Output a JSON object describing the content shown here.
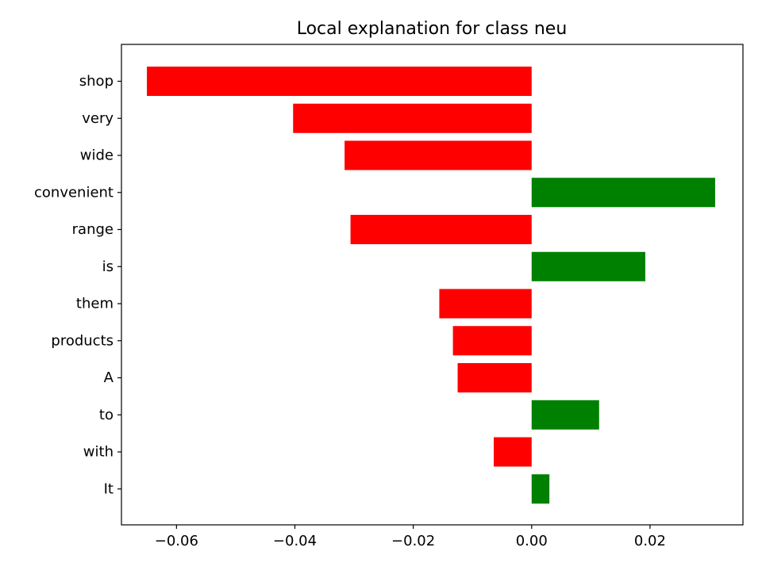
{
  "chart_data": {
    "type": "bar",
    "orientation": "horizontal",
    "title": "Local explanation for class neu",
    "xlabel": "",
    "ylabel": "",
    "categories": [
      "shop",
      "very",
      "wide",
      "convenient",
      "range",
      "is",
      "them",
      "products",
      "A",
      "to",
      "with",
      "It"
    ],
    "values": [
      -0.065,
      -0.0403,
      -0.0316,
      0.031,
      -0.0306,
      0.0192,
      -0.0156,
      -0.0133,
      -0.0125,
      0.0114,
      -0.0064,
      0.003
    ],
    "xlim": [
      -0.0693,
      0.0357
    ],
    "x_ticks": [
      -0.06,
      -0.04,
      -0.02,
      0.0,
      0.02
    ],
    "x_tick_labels": [
      "−0.06",
      "−0.04",
      "−0.02",
      "0.00",
      "0.02"
    ],
    "grid": false,
    "colors": {
      "positive": "#008000",
      "negative": "#ff0000",
      "axes": "#000000",
      "background": "#ffffff"
    }
  }
}
